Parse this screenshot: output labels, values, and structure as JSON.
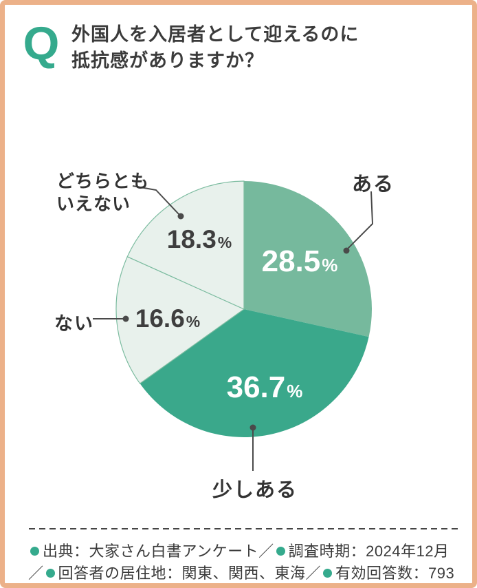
{
  "header": {
    "q_label": "Q",
    "title_line1": "外国人を入居者として迎えるのに",
    "title_line2": "抵抗感がありますか？",
    "accent_color": "#35aa8d",
    "border_color": "#ecb189"
  },
  "chart_data": {
    "type": "pie",
    "title": "外国人を入居者として迎えるのに抵抗感がありますか？",
    "unit": "%",
    "direction": "clockwise",
    "start_angle_deg": 0,
    "slices": [
      {
        "id": "aru",
        "label": "ある",
        "value": 28.5,
        "color": "#76b99d",
        "text_color": "#ffffff"
      },
      {
        "id": "sukoshi-aru",
        "label": "少しある",
        "value": 36.7,
        "color": "#3aa88b",
        "text_color": "#ffffff"
      },
      {
        "id": "nai",
        "label": "ない",
        "value": 16.6,
        "color": "#e8f1ec",
        "stroke": "#7cbca0",
        "text_color": "#3e3e3e"
      },
      {
        "id": "dochira",
        "label": "どちらともいえない",
        "value": 18.3,
        "color": "#e8f1ec",
        "stroke": "#7cbca0",
        "text_color": "#3e3e3e"
      }
    ]
  },
  "footer": {
    "lines": [
      [
        {
          "type": "bullet"
        },
        {
          "type": "text",
          "value": "出典：大家さん白書アンケート"
        },
        {
          "type": "text",
          "value": "／"
        },
        {
          "type": "bullet"
        },
        {
          "type": "text",
          "value": "調査時期：2024年12月"
        }
      ],
      [
        {
          "type": "text",
          "value": "／"
        },
        {
          "type": "bullet"
        },
        {
          "type": "text",
          "value": "回答者の居住地：関東、関西、東海"
        },
        {
          "type": "text",
          "value": "／"
        },
        {
          "type": "bullet"
        },
        {
          "type": "text",
          "value": "有効回答数：793"
        }
      ]
    ],
    "bullet_color": "#35aa8d"
  }
}
